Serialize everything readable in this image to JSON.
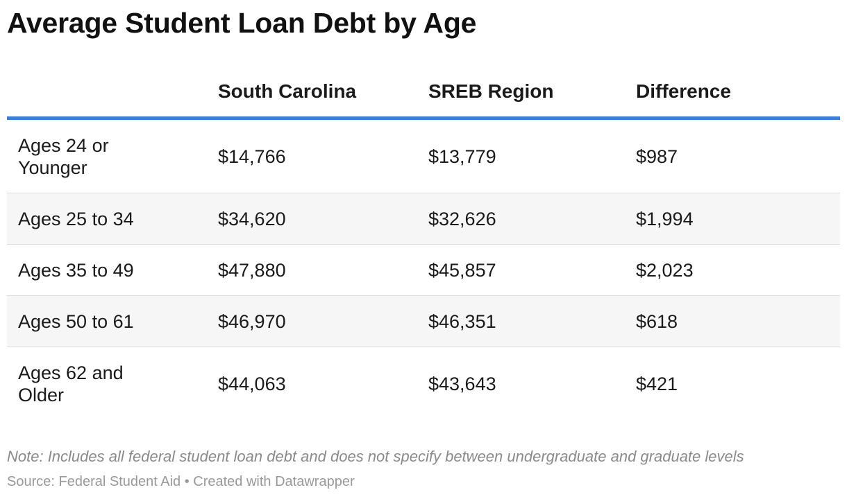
{
  "chart_data": {
    "type": "table",
    "title": "Average Student Loan Debt by Age",
    "columns": [
      "",
      "South Carolina",
      "SREB Region",
      "Difference"
    ],
    "rows": [
      {
        "label": "Ages 24 or Younger",
        "south_carolina": "$14,766",
        "sreb_region": "$13,779",
        "difference": "$987"
      },
      {
        "label": "Ages 25 to 34",
        "south_carolina": "$34,620",
        "sreb_region": "$32,626",
        "difference": "$1,994"
      },
      {
        "label": "Ages 35 to 49",
        "south_carolina": "$47,880",
        "sreb_region": "$45,857",
        "difference": "$2,023"
      },
      {
        "label": "Ages 50 to 61",
        "south_carolina": "$46,970",
        "sreb_region": "$46,351",
        "difference": "$618"
      },
      {
        "label": "Ages 62 and Older",
        "south_carolina": "$44,063",
        "sreb_region": "$43,643",
        "difference": "$421"
      }
    ],
    "note": "Note: Includes all federal student loan debt and does not specify between undergraduate and graduate levels",
    "source": "Source: Federal Student Aid • Created with Datawrapper"
  },
  "colors": {
    "header_rule": "#3a7fd5",
    "row_shade": "#f6f6f6"
  }
}
